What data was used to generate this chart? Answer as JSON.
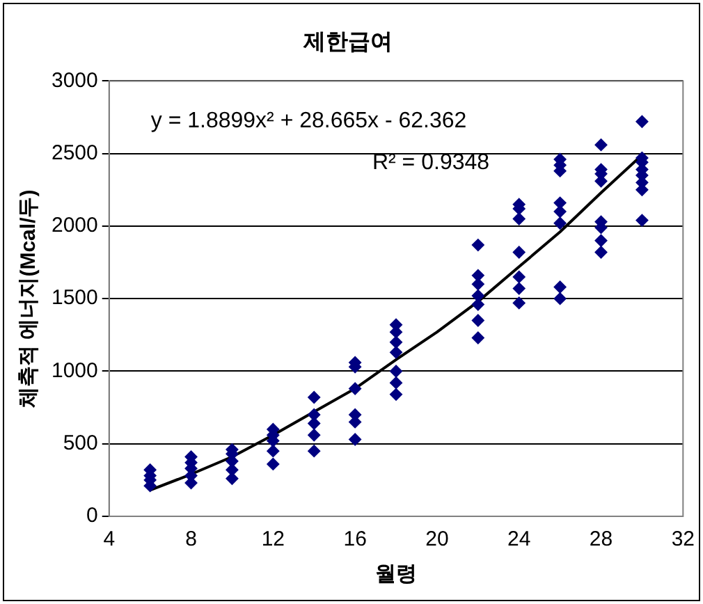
{
  "chart_data": {
    "type": "scatter",
    "title": "제한급여",
    "xlabel": "월령",
    "ylabel": "체축적 에너지(Mcal/두)",
    "xlim": [
      4,
      32
    ],
    "xticks": [
      4,
      8,
      12,
      16,
      20,
      24,
      28,
      32
    ],
    "ylim": [
      0,
      3000
    ],
    "yticks": [
      0,
      500,
      1000,
      1500,
      2000,
      2500,
      3000
    ],
    "grid": "y",
    "legend": false,
    "marker": "diamond",
    "series": [
      {
        "color": "#000080",
        "x": [
          6,
          6,
          6,
          6,
          8,
          8,
          8,
          8,
          8,
          10,
          10,
          10,
          10,
          10,
          12,
          12,
          12,
          12,
          12,
          14,
          14,
          14,
          14,
          14,
          16,
          16,
          16,
          16,
          16,
          16,
          18,
          18,
          18,
          18,
          18,
          18,
          18,
          22,
          22,
          22,
          22,
          22,
          22,
          22,
          24,
          24,
          24,
          24,
          24,
          24,
          24,
          26,
          26,
          26,
          26,
          26,
          26,
          26,
          26,
          28,
          28,
          28,
          28,
          28,
          28,
          28,
          28,
          30,
          30,
          30,
          30,
          30,
          30,
          30,
          30
        ],
        "values": [
          210,
          250,
          280,
          320,
          230,
          280,
          330,
          370,
          410,
          260,
          320,
          380,
          430,
          460,
          360,
          450,
          520,
          560,
          600,
          450,
          560,
          640,
          700,
          820,
          530,
          650,
          700,
          880,
          1030,
          1060,
          840,
          920,
          1000,
          1130,
          1200,
          1270,
          1320,
          1230,
          1350,
          1460,
          1520,
          1600,
          1660,
          1870,
          1470,
          1570,
          1650,
          1820,
          2050,
          2120,
          2150,
          1500,
          1580,
          2020,
          2100,
          2160,
          2380,
          2420,
          2460,
          1820,
          1900,
          1990,
          2030,
          2310,
          2360,
          2390,
          2560,
          2040,
          2250,
          2300,
          2350,
          2390,
          2440,
          2470,
          2720
        ]
      },
      {
        "type": "line",
        "color": "#000000",
        "marker": "none",
        "x": [
          6,
          8,
          10,
          12,
          14,
          16,
          18,
          20,
          22,
          24,
          26,
          28,
          30
        ],
        "values": [
          180,
          290,
          410,
          560,
          720,
          880,
          1080,
          1270,
          1480,
          1720,
          1960,
          2230,
          2490
        ]
      }
    ],
    "annotations": [
      "y = 1.8899x² + 28.665x - 62.362",
      "R² = 0.9348"
    ]
  }
}
